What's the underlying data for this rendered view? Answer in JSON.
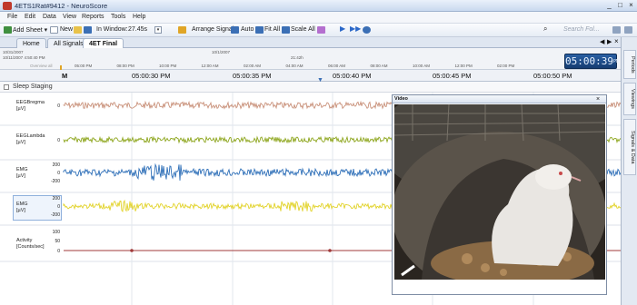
{
  "window": {
    "title": "4ETS1Rat#9412 - NeuroScore",
    "controls": [
      "_",
      "□",
      "×"
    ]
  },
  "menu": [
    "File",
    "Edit",
    "Data",
    "View",
    "Reports",
    "Tools",
    "Help"
  ],
  "toolbar": {
    "add_sheet": "Add Sheet ▾",
    "new": "New",
    "in_window_label": "In Window:",
    "in_window_value": "27.45s",
    "arrange_signals": "Arrange Signals",
    "auto": "Auto",
    "fit_all": "Fit All",
    "scale_all": "Scale All",
    "search_placeholder": "Search Fol..."
  },
  "tabs": [
    {
      "label": "Home",
      "active": false
    },
    {
      "label": "All Signals",
      "active": false
    },
    {
      "label": "4ET Final",
      "active": true
    }
  ],
  "overview": {
    "date_left": "10/31/2007",
    "date_right": "10/1/2007",
    "date_left_full": "10/11/2007 4:50:40 PM",
    "overview_label": "Overview all",
    "ticks": [
      "05:00 PM",
      "08:00 PM",
      "10:00 PM",
      "12:00 AM",
      "02:00 AM",
      "04:00 AM",
      "06:00 AM",
      "08:00 AM",
      "10:00 AM",
      "12:00 PM",
      "02:00 PM"
    ],
    "center_tick": "21:42h",
    "clock": "05:00:39",
    "clock_suffix": "PM"
  },
  "timeline": {
    "marker": "M",
    "labels": [
      "05:00:30 PM",
      "05:00:35 PM",
      "05:00:40 PM",
      "05:00:45 PM",
      "05:00:50 PM"
    ]
  },
  "sleep_staging": "Sleep Staging",
  "channels": [
    {
      "name": "EEGBregma",
      "unit": "[µV]",
      "scale": [
        "0"
      ],
      "color": "#c9917a"
    },
    {
      "name": "EEGLambda",
      "unit": "[µV]",
      "scale": [
        "0"
      ],
      "color": "#8ea61e"
    },
    {
      "name": "EMG",
      "unit": "[µV]",
      "scale": [
        "200",
        "0",
        "-200"
      ],
      "color": "#2e6fb8"
    },
    {
      "name": "EMG",
      "unit": "[µV]",
      "scale": [
        "200",
        "0",
        "-200"
      ],
      "color": "#e2d32a"
    },
    {
      "name": "Activity",
      "unit": "[Counts/sec]",
      "scale": [
        "100",
        "50",
        "0"
      ],
      "color": "#a03a3a"
    }
  ],
  "side_tabs": [
    "Periods",
    "Viewings",
    "Signals & Data"
  ],
  "video": {
    "title": "Video",
    "close": "×"
  }
}
